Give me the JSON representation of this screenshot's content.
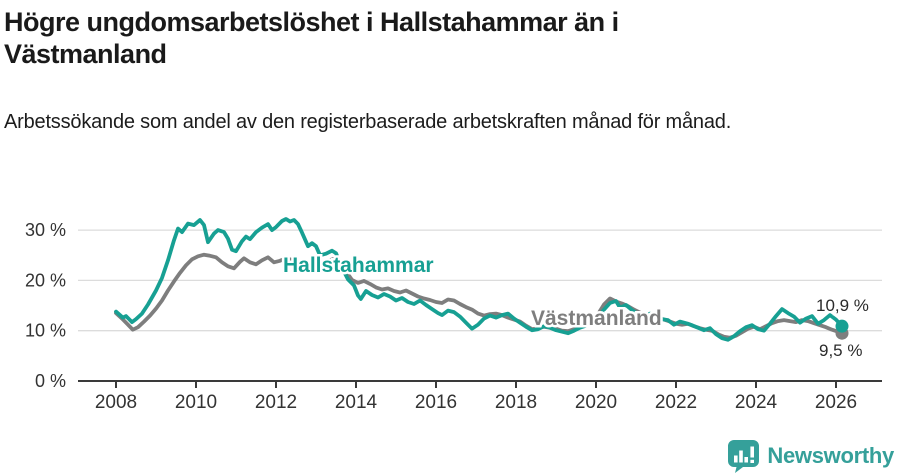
{
  "header": {
    "title": "Högre ungdomsarbetslöshet i Hallstahammar än i Västmanland",
    "subtitle": "Arbetssökande som andel av den registerbaserade arbetskraften månad för månad."
  },
  "footer": {
    "brand": "Newsworthy",
    "brand_color": "#35a09a"
  },
  "colors": {
    "background": "#ffffff",
    "grid": "#dcdcdc",
    "axis": "#3a3a3a",
    "text": "#333333"
  },
  "chart_data": {
    "type": "line",
    "title": "Högre ungdomsarbetslöshet i Hallstahammar än i Västmanland",
    "xlabel": "",
    "ylabel": "",
    "x_unit": "decimal_year",
    "xlim": [
      2007.1,
      2027.2
    ],
    "ylim": [
      0,
      35
    ],
    "grid": "horizontal",
    "legend_position": "inline-labels",
    "x_ticks": [
      "2008",
      "2010",
      "2012",
      "2014",
      "2016",
      "2018",
      "2020",
      "2022",
      "2024",
      "2026"
    ],
    "x_tick_years": [
      2008,
      2010,
      2012,
      2014,
      2016,
      2018,
      2020,
      2022,
      2024,
      2026
    ],
    "y_ticks": [
      {
        "value": 0,
        "label": "0 %"
      },
      {
        "value": 10,
        "label": "10 %"
      },
      {
        "value": 20,
        "label": "20 %"
      },
      {
        "value": 30,
        "label": "30 %"
      }
    ],
    "series": [
      {
        "name": "Hallstahammar",
        "color": "#17a093",
        "end_label": "10,9 %",
        "end_value": 10.9,
        "points": [
          [
            2008.0,
            13.8
          ],
          [
            2008.17,
            12.6
          ],
          [
            2008.25,
            12.9
          ],
          [
            2008.4,
            11.7
          ],
          [
            2008.5,
            12.3
          ],
          [
            2008.65,
            13.4
          ],
          [
            2008.8,
            15.2
          ],
          [
            2009.0,
            18.0
          ],
          [
            2009.15,
            20.5
          ],
          [
            2009.3,
            24.0
          ],
          [
            2009.45,
            28.0
          ],
          [
            2009.55,
            30.3
          ],
          [
            2009.65,
            29.6
          ],
          [
            2009.8,
            31.3
          ],
          [
            2009.95,
            31.0
          ],
          [
            2010.1,
            32.0
          ],
          [
            2010.2,
            31.0
          ],
          [
            2010.3,
            27.6
          ],
          [
            2010.45,
            29.3
          ],
          [
            2010.55,
            30.0
          ],
          [
            2010.7,
            29.6
          ],
          [
            2010.8,
            28.3
          ],
          [
            2010.9,
            26.1
          ],
          [
            2011.0,
            25.8
          ],
          [
            2011.15,
            27.8
          ],
          [
            2011.25,
            28.7
          ],
          [
            2011.35,
            28.2
          ],
          [
            2011.5,
            29.6
          ],
          [
            2011.65,
            30.5
          ],
          [
            2011.8,
            31.2
          ],
          [
            2011.9,
            30.0
          ],
          [
            2012.0,
            30.6
          ],
          [
            2012.15,
            31.8
          ],
          [
            2012.25,
            32.2
          ],
          [
            2012.35,
            31.7
          ],
          [
            2012.45,
            32.0
          ],
          [
            2012.55,
            31.2
          ],
          [
            2012.65,
            29.5
          ],
          [
            2012.8,
            26.8
          ],
          [
            2012.9,
            27.4
          ],
          [
            2013.0,
            26.8
          ],
          [
            2013.1,
            25.0
          ],
          [
            2013.25,
            25.3
          ],
          [
            2013.4,
            25.9
          ],
          [
            2013.5,
            25.4
          ],
          [
            2013.65,
            22.5
          ],
          [
            2013.8,
            20.2
          ],
          [
            2013.95,
            19.0
          ],
          [
            2014.05,
            17.0
          ],
          [
            2014.12,
            16.3
          ],
          [
            2014.25,
            17.9
          ],
          [
            2014.4,
            17.1
          ],
          [
            2014.55,
            16.6
          ],
          [
            2014.7,
            17.3
          ],
          [
            2014.85,
            16.8
          ],
          [
            2015.0,
            16.0
          ],
          [
            2015.15,
            16.5
          ],
          [
            2015.3,
            15.7
          ],
          [
            2015.45,
            15.3
          ],
          [
            2015.6,
            16.0
          ],
          [
            2015.75,
            15.1
          ],
          [
            2015.9,
            14.3
          ],
          [
            2016.05,
            13.5
          ],
          [
            2016.15,
            13.1
          ],
          [
            2016.3,
            14.0
          ],
          [
            2016.45,
            13.7
          ],
          [
            2016.6,
            12.8
          ],
          [
            2016.75,
            11.6
          ],
          [
            2016.9,
            10.4
          ],
          [
            2017.05,
            11.2
          ],
          [
            2017.2,
            12.4
          ],
          [
            2017.35,
            13.0
          ],
          [
            2017.5,
            12.6
          ],
          [
            2017.65,
            13.1
          ],
          [
            2017.8,
            13.4
          ],
          [
            2017.95,
            12.4
          ],
          [
            2018.1,
            11.6
          ],
          [
            2018.25,
            10.8
          ],
          [
            2018.4,
            10.1
          ],
          [
            2018.55,
            10.3
          ],
          [
            2018.7,
            10.9
          ],
          [
            2018.85,
            10.6
          ],
          [
            2019.0,
            10.1
          ],
          [
            2019.15,
            9.8
          ],
          [
            2019.3,
            9.5
          ],
          [
            2019.45,
            10.0
          ],
          [
            2019.6,
            10.6
          ],
          [
            2019.75,
            11.0
          ],
          [
            2019.9,
            11.6
          ],
          [
            2020.05,
            12.5
          ],
          [
            2020.2,
            14.2
          ],
          [
            2020.35,
            15.5
          ],
          [
            2020.5,
            15.9
          ],
          [
            2020.6,
            14.6
          ],
          [
            2020.75,
            15.1
          ],
          [
            2020.9,
            14.1
          ],
          [
            2021.05,
            13.3
          ],
          [
            2021.2,
            12.8
          ],
          [
            2021.35,
            13.4
          ],
          [
            2021.5,
            12.9
          ],
          [
            2021.65,
            12.3
          ],
          [
            2021.8,
            12.1
          ],
          [
            2021.95,
            11.2
          ],
          [
            2022.1,
            11.8
          ],
          [
            2022.25,
            11.5
          ],
          [
            2022.4,
            11.1
          ],
          [
            2022.55,
            10.6
          ],
          [
            2022.7,
            10.1
          ],
          [
            2022.85,
            10.5
          ],
          [
            2023.0,
            9.3
          ],
          [
            2023.15,
            8.5
          ],
          [
            2023.3,
            8.2
          ],
          [
            2023.45,
            8.9
          ],
          [
            2023.6,
            9.9
          ],
          [
            2023.75,
            10.7
          ],
          [
            2023.9,
            11.1
          ],
          [
            2024.05,
            10.3
          ],
          [
            2024.2,
            10.0
          ],
          [
            2024.35,
            11.4
          ],
          [
            2024.5,
            12.9
          ],
          [
            2024.65,
            14.3
          ],
          [
            2024.8,
            13.5
          ],
          [
            2024.95,
            12.8
          ],
          [
            2025.1,
            11.6
          ],
          [
            2025.25,
            12.4
          ],
          [
            2025.4,
            12.9
          ],
          [
            2025.55,
            11.4
          ],
          [
            2025.7,
            12.1
          ],
          [
            2025.85,
            13.1
          ],
          [
            2026.0,
            12.2
          ],
          [
            2026.15,
            10.9
          ]
        ]
      },
      {
        "name": "Västmanland",
        "color": "#7e7e7e",
        "end_label": "9,5 %",
        "end_value": 9.5,
        "points": [
          [
            2008.0,
            13.5
          ],
          [
            2008.15,
            12.4
          ],
          [
            2008.3,
            11.2
          ],
          [
            2008.42,
            10.2
          ],
          [
            2008.55,
            10.7
          ],
          [
            2008.7,
            11.8
          ],
          [
            2008.85,
            13.0
          ],
          [
            2009.0,
            14.4
          ],
          [
            2009.15,
            16.0
          ],
          [
            2009.3,
            18.0
          ],
          [
            2009.45,
            19.8
          ],
          [
            2009.6,
            21.5
          ],
          [
            2009.75,
            23.0
          ],
          [
            2009.9,
            24.2
          ],
          [
            2010.05,
            24.8
          ],
          [
            2010.2,
            25.1
          ],
          [
            2010.35,
            24.9
          ],
          [
            2010.5,
            24.6
          ],
          [
            2010.65,
            23.6
          ],
          [
            2010.8,
            22.8
          ],
          [
            2010.95,
            22.4
          ],
          [
            2011.1,
            23.7
          ],
          [
            2011.2,
            24.4
          ],
          [
            2011.35,
            23.6
          ],
          [
            2011.5,
            23.2
          ],
          [
            2011.65,
            24.0
          ],
          [
            2011.8,
            24.6
          ],
          [
            2011.95,
            23.6
          ],
          [
            2012.1,
            23.9
          ],
          [
            2012.25,
            24.4
          ],
          [
            2012.4,
            24.1
          ],
          [
            2012.55,
            23.8
          ],
          [
            2012.7,
            23.0
          ],
          [
            2012.85,
            22.6
          ],
          [
            2013.0,
            23.8
          ],
          [
            2013.15,
            23.3
          ],
          [
            2013.3,
            23.9
          ],
          [
            2013.45,
            24.3
          ],
          [
            2013.6,
            23.4
          ],
          [
            2013.75,
            21.8
          ],
          [
            2013.9,
            20.1
          ],
          [
            2014.05,
            19.5
          ],
          [
            2014.2,
            19.9
          ],
          [
            2014.35,
            19.3
          ],
          [
            2014.5,
            18.6
          ],
          [
            2014.65,
            18.2
          ],
          [
            2014.8,
            18.4
          ],
          [
            2014.95,
            17.9
          ],
          [
            2015.1,
            17.6
          ],
          [
            2015.25,
            18.0
          ],
          [
            2015.4,
            17.4
          ],
          [
            2015.55,
            16.8
          ],
          [
            2015.7,
            16.4
          ],
          [
            2015.85,
            16.1
          ],
          [
            2016.0,
            15.7
          ],
          [
            2016.15,
            15.5
          ],
          [
            2016.3,
            16.2
          ],
          [
            2016.45,
            16.0
          ],
          [
            2016.6,
            15.3
          ],
          [
            2016.75,
            14.7
          ],
          [
            2016.9,
            14.2
          ],
          [
            2017.05,
            13.4
          ],
          [
            2017.2,
            13.0
          ],
          [
            2017.35,
            13.3
          ],
          [
            2017.5,
            13.4
          ],
          [
            2017.65,
            13.1
          ],
          [
            2017.8,
            12.6
          ],
          [
            2017.95,
            12.2
          ],
          [
            2018.1,
            11.8
          ],
          [
            2018.25,
            11.0
          ],
          [
            2018.4,
            10.3
          ],
          [
            2018.55,
            10.5
          ],
          [
            2018.7,
            10.8
          ],
          [
            2018.85,
            10.6
          ],
          [
            2019.0,
            10.4
          ],
          [
            2019.15,
            10.0
          ],
          [
            2019.3,
            9.9
          ],
          [
            2019.45,
            10.3
          ],
          [
            2019.6,
            10.8
          ],
          [
            2019.75,
            11.3
          ],
          [
            2019.9,
            12.0
          ],
          [
            2020.05,
            13.3
          ],
          [
            2020.2,
            15.2
          ],
          [
            2020.35,
            16.4
          ],
          [
            2020.5,
            15.8
          ],
          [
            2020.65,
            15.4
          ],
          [
            2020.8,
            14.9
          ],
          [
            2020.95,
            14.2
          ],
          [
            2021.1,
            13.6
          ],
          [
            2021.25,
            13.2
          ],
          [
            2021.4,
            13.0
          ],
          [
            2021.55,
            12.6
          ],
          [
            2021.7,
            12.2
          ],
          [
            2021.85,
            11.8
          ],
          [
            2022.0,
            11.4
          ],
          [
            2022.15,
            11.2
          ],
          [
            2022.3,
            11.4
          ],
          [
            2022.45,
            10.9
          ],
          [
            2022.6,
            10.5
          ],
          [
            2022.75,
            10.2
          ],
          [
            2022.9,
            10.0
          ],
          [
            2023.05,
            9.3
          ],
          [
            2023.2,
            8.8
          ],
          [
            2023.35,
            8.6
          ],
          [
            2023.5,
            9.0
          ],
          [
            2023.65,
            9.7
          ],
          [
            2023.8,
            10.4
          ],
          [
            2023.95,
            10.8
          ],
          [
            2024.1,
            10.3
          ],
          [
            2024.25,
            10.9
          ],
          [
            2024.4,
            11.5
          ],
          [
            2024.55,
            11.9
          ],
          [
            2024.7,
            12.1
          ],
          [
            2024.85,
            11.9
          ],
          [
            2025.0,
            11.7
          ],
          [
            2025.15,
            12.1
          ],
          [
            2025.3,
            11.9
          ],
          [
            2025.45,
            11.5
          ],
          [
            2025.6,
            11.1
          ],
          [
            2025.75,
            10.7
          ],
          [
            2025.9,
            10.2
          ],
          [
            2026.05,
            9.8
          ],
          [
            2026.15,
            9.5
          ]
        ]
      }
    ]
  }
}
